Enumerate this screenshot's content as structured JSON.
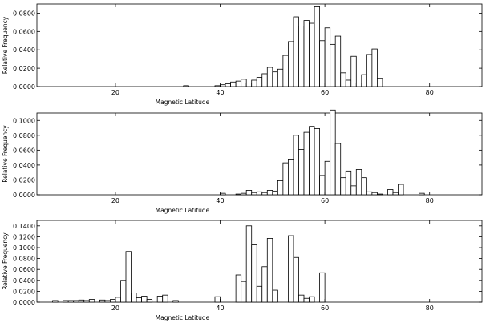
{
  "chart_data": [
    {
      "type": "bar",
      "xlabel": "Magnetic Latitude",
      "ylabel": "Relative Frequency",
      "xlim": [
        5,
        90
      ],
      "ylim": [
        0,
        0.09
      ],
      "x_ticks": [
        20,
        40,
        60,
        80
      ],
      "y_ticks": [
        0.0,
        0.02,
        0.04,
        0.06,
        0.08
      ],
      "y_tick_labels": [
        "0.0000",
        "0.0200",
        "0.0400",
        "0.0600",
        "0.0800"
      ],
      "bin_width": 1,
      "grid": false,
      "bins": [
        {
          "x": 33,
          "y": 0.001
        },
        {
          "x": 39,
          "y": 0.001
        },
        {
          "x": 40,
          "y": 0.002
        },
        {
          "x": 41,
          "y": 0.003
        },
        {
          "x": 42,
          "y": 0.005
        },
        {
          "x": 43,
          "y": 0.006
        },
        {
          "x": 44,
          "y": 0.008
        },
        {
          "x": 45,
          "y": 0.004
        },
        {
          "x": 46,
          "y": 0.007
        },
        {
          "x": 47,
          "y": 0.01
        },
        {
          "x": 48,
          "y": 0.014
        },
        {
          "x": 49,
          "y": 0.021
        },
        {
          "x": 50,
          "y": 0.016
        },
        {
          "x": 51,
          "y": 0.019
        },
        {
          "x": 52,
          "y": 0.034
        },
        {
          "x": 53,
          "y": 0.049
        },
        {
          "x": 54,
          "y": 0.076
        },
        {
          "x": 55,
          "y": 0.066
        },
        {
          "x": 56,
          "y": 0.072
        },
        {
          "x": 57,
          "y": 0.069
        },
        {
          "x": 58,
          "y": 0.087
        },
        {
          "x": 59,
          "y": 0.05
        },
        {
          "x": 60,
          "y": 0.064
        },
        {
          "x": 61,
          "y": 0.046
        },
        {
          "x": 62,
          "y": 0.055
        },
        {
          "x": 63,
          "y": 0.015
        },
        {
          "x": 64,
          "y": 0.007
        },
        {
          "x": 65,
          "y": 0.033
        },
        {
          "x": 66,
          "y": 0.004
        },
        {
          "x": 67,
          "y": 0.013
        },
        {
          "x": 68,
          "y": 0.035
        },
        {
          "x": 69,
          "y": 0.041
        },
        {
          "x": 70,
          "y": 0.009
        }
      ]
    },
    {
      "type": "bar",
      "xlabel": "Magnetic Latitude",
      "ylabel": "Relative Frequency",
      "xlim": [
        5,
        90
      ],
      "ylim": [
        0,
        0.11
      ],
      "x_ticks": [
        20,
        40,
        60,
        80
      ],
      "y_ticks": [
        0.0,
        0.02,
        0.04,
        0.06,
        0.08,
        0.1
      ],
      "y_tick_labels": [
        "0.0000",
        "0.0200",
        "0.0400",
        "0.0600",
        "0.0800",
        "0.1000"
      ],
      "bin_width": 1,
      "grid": false,
      "bins": [
        {
          "x": 40,
          "y": 0.002
        },
        {
          "x": 43,
          "y": 0.001
        },
        {
          "x": 44,
          "y": 0.002
        },
        {
          "x": 45,
          "y": 0.006
        },
        {
          "x": 46,
          "y": 0.003
        },
        {
          "x": 47,
          "y": 0.004
        },
        {
          "x": 48,
          "y": 0.003
        },
        {
          "x": 49,
          "y": 0.006
        },
        {
          "x": 50,
          "y": 0.005
        },
        {
          "x": 51,
          "y": 0.019
        },
        {
          "x": 52,
          "y": 0.043
        },
        {
          "x": 53,
          "y": 0.047
        },
        {
          "x": 54,
          "y": 0.08
        },
        {
          "x": 55,
          "y": 0.061
        },
        {
          "x": 56,
          "y": 0.084
        },
        {
          "x": 57,
          "y": 0.092
        },
        {
          "x": 58,
          "y": 0.089
        },
        {
          "x": 59,
          "y": 0.026
        },
        {
          "x": 60,
          "y": 0.045
        },
        {
          "x": 61,
          "y": 0.114
        },
        {
          "x": 62,
          "y": 0.069
        },
        {
          "x": 63,
          "y": 0.023
        },
        {
          "x": 64,
          "y": 0.032
        },
        {
          "x": 65,
          "y": 0.012
        },
        {
          "x": 66,
          "y": 0.034
        },
        {
          "x": 67,
          "y": 0.023
        },
        {
          "x": 68,
          "y": 0.004
        },
        {
          "x": 69,
          "y": 0.003
        },
        {
          "x": 70,
          "y": 0.001
        },
        {
          "x": 72,
          "y": 0.007
        },
        {
          "x": 73,
          "y": 0.003
        },
        {
          "x": 74,
          "y": 0.014
        },
        {
          "x": 78,
          "y": 0.002
        }
      ]
    },
    {
      "type": "bar",
      "xlabel": "Magnetic Latitude",
      "ylabel": "Relative Frequency",
      "xlim": [
        5,
        90
      ],
      "ylim": [
        0,
        0.15
      ],
      "x_ticks": [
        20,
        40,
        60,
        80
      ],
      "y_ticks": [
        0.0,
        0.02,
        0.04,
        0.06,
        0.08,
        0.1,
        0.12,
        0.14
      ],
      "y_tick_labels": [
        "0.0000",
        "0.0200",
        "0.0400",
        "0.0600",
        "0.0800",
        "0.1000",
        "0.1200",
        "0.1400"
      ],
      "bin_width": 1,
      "grid": false,
      "bins": [
        {
          "x": 8,
          "y": 0.003
        },
        {
          "x": 10,
          "y": 0.003
        },
        {
          "x": 11,
          "y": 0.003
        },
        {
          "x": 12,
          "y": 0.003
        },
        {
          "x": 13,
          "y": 0.004
        },
        {
          "x": 14,
          "y": 0.003
        },
        {
          "x": 15,
          "y": 0.005
        },
        {
          "x": 17,
          "y": 0.004
        },
        {
          "x": 18,
          "y": 0.003
        },
        {
          "x": 19,
          "y": 0.005
        },
        {
          "x": 20,
          "y": 0.009
        },
        {
          "x": 21,
          "y": 0.04
        },
        {
          "x": 22,
          "y": 0.093
        },
        {
          "x": 23,
          "y": 0.017
        },
        {
          "x": 24,
          "y": 0.008
        },
        {
          "x": 25,
          "y": 0.011
        },
        {
          "x": 26,
          "y": 0.005
        },
        {
          "x": 28,
          "y": 0.011
        },
        {
          "x": 29,
          "y": 0.013
        },
        {
          "x": 31,
          "y": 0.003
        },
        {
          "x": 39,
          "y": 0.01
        },
        {
          "x": 43,
          "y": 0.05
        },
        {
          "x": 44,
          "y": 0.038
        },
        {
          "x": 45,
          "y": 0.14
        },
        {
          "x": 46,
          "y": 0.105
        },
        {
          "x": 47,
          "y": 0.029
        },
        {
          "x": 48,
          "y": 0.065
        },
        {
          "x": 49,
          "y": 0.117
        },
        {
          "x": 50,
          "y": 0.022
        },
        {
          "x": 53,
          "y": 0.122
        },
        {
          "x": 54,
          "y": 0.082
        },
        {
          "x": 55,
          "y": 0.013
        },
        {
          "x": 56,
          "y": 0.007
        },
        {
          "x": 57,
          "y": 0.01
        },
        {
          "x": 59,
          "y": 0.054
        }
      ]
    }
  ]
}
